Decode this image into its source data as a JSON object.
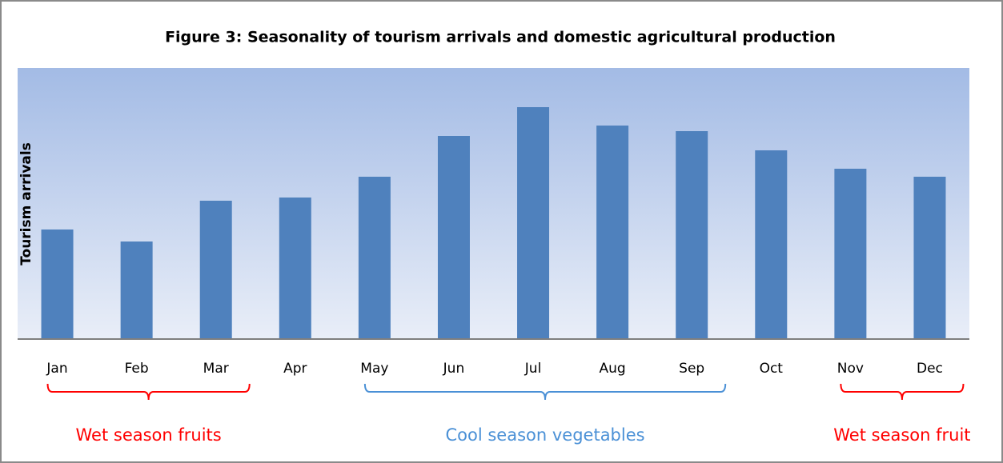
{
  "chart_data": {
    "type": "bar",
    "title": "Figure 3: Seasonality of tourism arrivals and domestic agricultural production",
    "y_label": "Tourism arrivals",
    "categories": [
      "Jan",
      "Feb",
      "Mar",
      "Apr",
      "May",
      "Jun",
      "Jul",
      "Aug",
      "Sep",
      "Oct",
      "Nov",
      "Dec"
    ],
    "values": [
      137,
      122,
      173,
      177,
      203,
      254,
      290,
      267,
      260,
      236,
      213,
      203
    ],
    "color": "#4f81bd",
    "ylim": [
      0,
      339
    ],
    "annotations": [
      {
        "text": "Wet season fruits",
        "from": 0,
        "to": 2,
        "color": "#ff0000"
      },
      {
        "text": "Cool season vegetables",
        "from": 4,
        "to": 8,
        "color": "#4a90d6"
      },
      {
        "text": "Wet season fruit",
        "from": 10,
        "to": 11,
        "color": "#ff0000"
      }
    ]
  }
}
